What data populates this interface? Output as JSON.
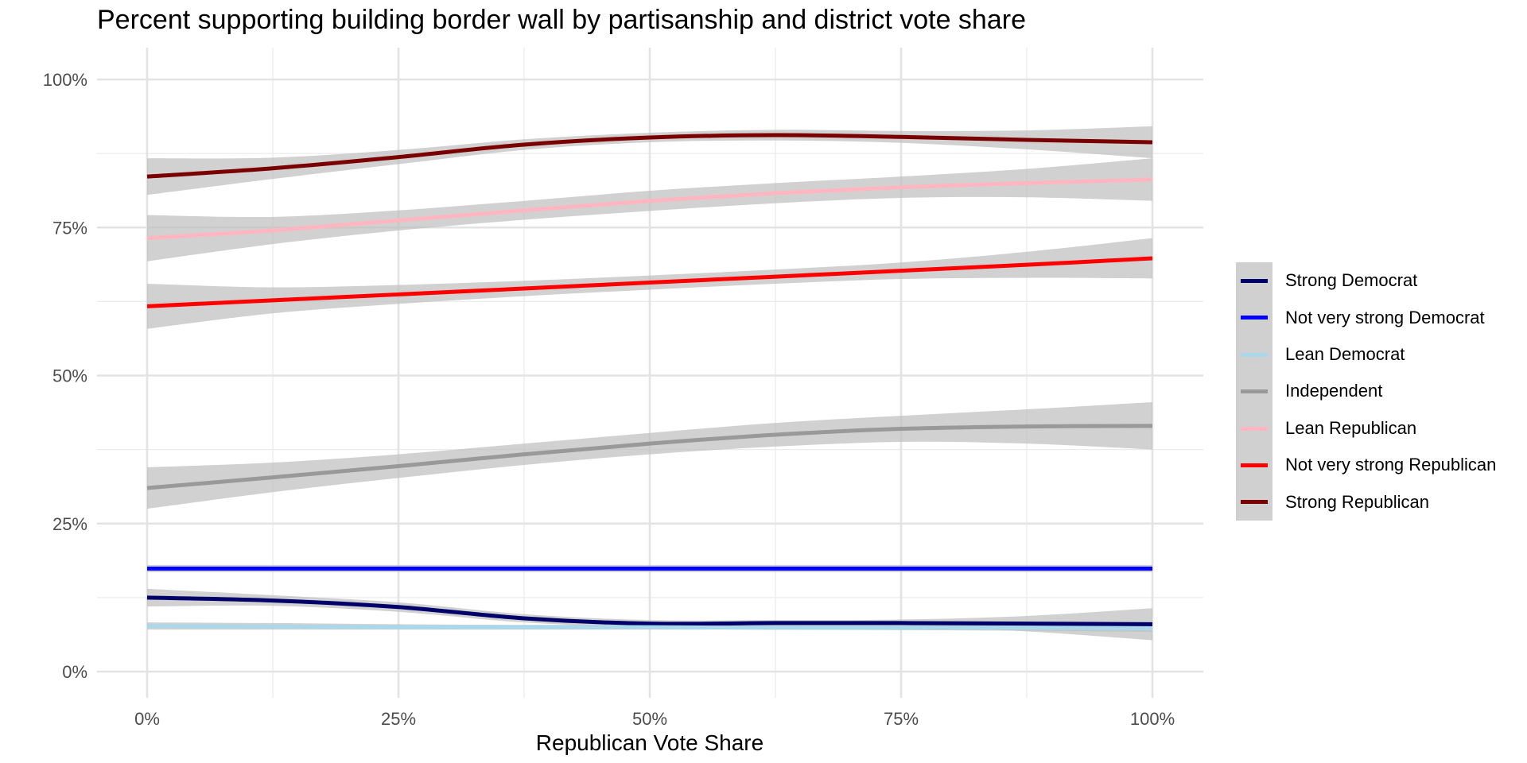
{
  "chart_data": {
    "type": "line",
    "title": "Percent supporting building border wall by partisanship and district vote share",
    "xlabel": "Republican Vote Share",
    "ylabel": "",
    "xlim": [
      -0.05,
      1.05
    ],
    "ylim": [
      -0.04,
      1.05
    ],
    "x_ticks": [
      0,
      0.25,
      0.5,
      0.75,
      1.0
    ],
    "x_tick_labels": [
      "0%",
      "25%",
      "50%",
      "75%",
      "100%"
    ],
    "y_ticks": [
      0,
      0.25,
      0.5,
      0.75,
      1.0
    ],
    "y_tick_labels": [
      "0%",
      "25%",
      "50%",
      "75%",
      "100%"
    ],
    "grid": true,
    "legend_position": "right",
    "confidence_band_color": "#bebebe",
    "series": [
      {
        "name": "Strong Democrat",
        "color": "#00006b",
        "x": [
          0,
          0.125,
          0.25,
          0.375,
          0.5,
          0.625,
          0.75,
          0.875,
          1.0
        ],
        "y": [
          0.125,
          0.12,
          0.109,
          0.09,
          0.081,
          0.082,
          0.082,
          0.081,
          0.08
        ],
        "lower": [
          0.11,
          0.111,
          0.101,
          0.083,
          0.075,
          0.077,
          0.076,
          0.068,
          0.053
        ],
        "upper": [
          0.14,
          0.129,
          0.117,
          0.097,
          0.087,
          0.087,
          0.088,
          0.094,
          0.107
        ]
      },
      {
        "name": "Not very strong Democrat",
        "color": "#0000ff",
        "x": [
          0,
          0.125,
          0.25,
          0.375,
          0.5,
          0.625,
          0.75,
          0.875,
          1.0
        ],
        "y": [
          0.174,
          0.174,
          0.174,
          0.174,
          0.174,
          0.174,
          0.174,
          0.174,
          0.174
        ],
        "lower": [
          0.168,
          0.168,
          0.168,
          0.168,
          0.168,
          0.168,
          0.168,
          0.168,
          0.168
        ],
        "upper": [
          0.18,
          0.18,
          0.18,
          0.18,
          0.18,
          0.18,
          0.18,
          0.18,
          0.18
        ]
      },
      {
        "name": "Lean Democrat",
        "color": "#a8d8ea",
        "x": [
          0,
          0.125,
          0.25,
          0.375,
          0.5,
          0.625,
          0.75,
          0.875,
          1.0
        ],
        "y": [
          0.077,
          0.076,
          0.075,
          0.075,
          0.075,
          0.074,
          0.074,
          0.074,
          0.073
        ],
        "lower": [
          0.071,
          0.071,
          0.071,
          0.071,
          0.071,
          0.071,
          0.07,
          0.069,
          0.067
        ],
        "upper": [
          0.083,
          0.082,
          0.08,
          0.079,
          0.079,
          0.078,
          0.078,
          0.079,
          0.079
        ]
      },
      {
        "name": "Independent",
        "color": "#999999",
        "x": [
          0,
          0.125,
          0.25,
          0.375,
          0.5,
          0.625,
          0.75,
          0.875,
          1.0
        ],
        "y": [
          0.31,
          0.328,
          0.347,
          0.367,
          0.385,
          0.4,
          0.41,
          0.414,
          0.415
        ],
        "lower": [
          0.275,
          0.303,
          0.327,
          0.349,
          0.367,
          0.38,
          0.388,
          0.385,
          0.375
        ],
        "upper": [
          0.345,
          0.353,
          0.367,
          0.385,
          0.403,
          0.42,
          0.432,
          0.443,
          0.455
        ]
      },
      {
        "name": "Lean Republican",
        "color": "#ffb6c1",
        "x": [
          0,
          0.125,
          0.25,
          0.375,
          0.5,
          0.625,
          0.75,
          0.875,
          1.0
        ],
        "y": [
          0.732,
          0.745,
          0.762,
          0.779,
          0.795,
          0.808,
          0.818,
          0.825,
          0.831
        ],
        "lower": [
          0.693,
          0.722,
          0.745,
          0.763,
          0.778,
          0.791,
          0.8,
          0.801,
          0.795
        ],
        "upper": [
          0.771,
          0.768,
          0.779,
          0.795,
          0.812,
          0.825,
          0.836,
          0.849,
          0.867
        ]
      },
      {
        "name": "Not very strong Republican",
        "color": "#ff0000",
        "x": [
          0,
          0.125,
          0.25,
          0.375,
          0.5,
          0.625,
          0.75,
          0.875,
          1.0
        ],
        "y": [
          0.617,
          0.627,
          0.637,
          0.647,
          0.657,
          0.667,
          0.677,
          0.687,
          0.698
        ],
        "lower": [
          0.579,
          0.605,
          0.621,
          0.634,
          0.645,
          0.655,
          0.663,
          0.665,
          0.664
        ],
        "upper": [
          0.655,
          0.649,
          0.653,
          0.66,
          0.669,
          0.679,
          0.691,
          0.709,
          0.732
        ]
      },
      {
        "name": "Strong Republican",
        "color": "#7a0000",
        "x": [
          0,
          0.125,
          0.25,
          0.375,
          0.5,
          0.625,
          0.75,
          0.875,
          1.0
        ],
        "y": [
          0.836,
          0.85,
          0.869,
          0.89,
          0.902,
          0.906,
          0.903,
          0.898,
          0.894
        ],
        "lower": [
          0.805,
          0.832,
          0.857,
          0.881,
          0.894,
          0.897,
          0.893,
          0.882,
          0.867
        ],
        "upper": [
          0.867,
          0.868,
          0.881,
          0.899,
          0.91,
          0.915,
          0.913,
          0.914,
          0.921
        ]
      }
    ]
  }
}
